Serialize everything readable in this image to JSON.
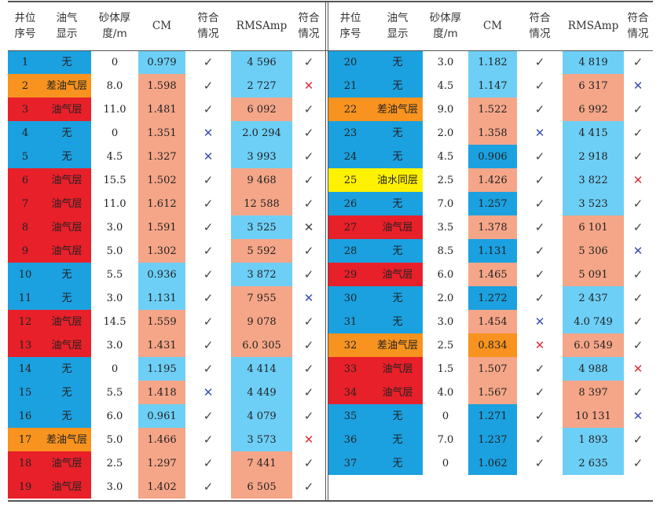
{
  "colors": {
    "none": "#1ba1e0",
    "oil_gas": "#e8202a",
    "poor_oil_gas": "#f7931e",
    "oil_water": "#fff200",
    "cm_low": "#6dcff6",
    "cm_high": "#f5a688",
    "cm_orange": "#f7931e",
    "cm_blue": "#1ba1e0",
    "rms_low": "#6dcff6",
    "rms_high": "#f5a688"
  },
  "headers": {
    "well_no": [
      "井位",
      "序号"
    ],
    "display": [
      "油气",
      "显示"
    ],
    "thickness": [
      "砂体厚",
      "度/m"
    ],
    "cm": [
      "CM"
    ],
    "cm_match": [
      "符合",
      "情况"
    ],
    "rms": [
      "RMSAmp"
    ],
    "rms_match": [
      "符合",
      "情况"
    ]
  },
  "symbols": {
    "yes": "✓",
    "no": "✕"
  },
  "left_rows": [
    {
      "no": "1",
      "disp": "无",
      "dc": "none",
      "thk": "0",
      "cm": "0.979",
      "cmc": "cm_low",
      "cmm": "yes",
      "rms": "4 596",
      "rmsc": "rms_low",
      "rmsm": "yes"
    },
    {
      "no": "2",
      "disp": "差油气层",
      "dc": "poor_oil_gas",
      "thk": "8.0",
      "cm": "1.598",
      "cmc": "cm_high",
      "cmm": "yes",
      "rms": "2 727",
      "rmsc": "rms_low",
      "rmsm": "no-red"
    },
    {
      "no": "3",
      "disp": "油气层",
      "dc": "oil_gas",
      "thk": "11.0",
      "cm": "1.481",
      "cmc": "cm_high",
      "cmm": "yes",
      "rms": "6 092",
      "rmsc": "rms_high",
      "rmsm": "yes"
    },
    {
      "no": "4",
      "disp": "无",
      "dc": "none",
      "thk": "0",
      "cm": "1.351",
      "cmc": "cm_high",
      "cmm": "no-blue",
      "rms": "2.0 294",
      "rmsc": "rms_low",
      "rmsm": "yes"
    },
    {
      "no": "5",
      "disp": "无",
      "dc": "none",
      "thk": "4.5",
      "cm": "1.327",
      "cmc": "cm_high",
      "cmm": "no-blue",
      "rms": "3 993",
      "rmsc": "rms_low",
      "rmsm": "yes"
    },
    {
      "no": "6",
      "disp": "油气层",
      "dc": "oil_gas",
      "thk": "15.5",
      "cm": "1.502",
      "cmc": "cm_high",
      "cmm": "yes",
      "rms": "9 468",
      "rmsc": "rms_high",
      "rmsm": "yes"
    },
    {
      "no": "7",
      "disp": "油气层",
      "dc": "oil_gas",
      "thk": "11.0",
      "cm": "1.612",
      "cmc": "cm_high",
      "cmm": "yes",
      "rms": "12 588",
      "rmsc": "rms_high",
      "rmsm": "yes"
    },
    {
      "no": "8",
      "disp": "油气层",
      "dc": "oil_gas",
      "thk": "3.0",
      "cm": "1.591",
      "cmc": "cm_high",
      "cmm": "yes",
      "rms": "3 525",
      "rmsc": "rms_low",
      "rmsm": "no-dark"
    },
    {
      "no": "9",
      "disp": "油气层",
      "dc": "oil_gas",
      "thk": "5.0",
      "cm": "1.302",
      "cmc": "cm_high",
      "cmm": "yes",
      "rms": "5 592",
      "rmsc": "rms_high",
      "rmsm": "yes"
    },
    {
      "no": "10",
      "disp": "无",
      "dc": "none",
      "thk": "5.5",
      "cm": "0.936",
      "cmc": "cm_low",
      "cmm": "yes",
      "rms": "3 872",
      "rmsc": "rms_low",
      "rmsm": "yes"
    },
    {
      "no": "11",
      "disp": "无",
      "dc": "none",
      "thk": "3.0",
      "cm": "1.131",
      "cmc": "cm_low",
      "cmm": "yes",
      "rms": "7 955",
      "rmsc": "rms_high",
      "rmsm": "no-blue"
    },
    {
      "no": "12",
      "disp": "油气层",
      "dc": "oil_gas",
      "thk": "14.5",
      "cm": "1.559",
      "cmc": "cm_high",
      "cmm": "yes",
      "rms": "9 078",
      "rmsc": "rms_high",
      "rmsm": "yes"
    },
    {
      "no": "13",
      "disp": "油气层",
      "dc": "oil_gas",
      "thk": "3.0",
      "cm": "1.431",
      "cmc": "cm_high",
      "cmm": "yes",
      "rms": "6.0 305",
      "rmsc": "rms_high",
      "rmsm": "yes"
    },
    {
      "no": "14",
      "disp": "无",
      "dc": "none",
      "thk": "0",
      "cm": "1.195",
      "cmc": "cm_low",
      "cmm": "yes",
      "rms": "4 414",
      "rmsc": "rms_low",
      "rmsm": "yes"
    },
    {
      "no": "15",
      "disp": "无",
      "dc": "none",
      "thk": "5.5",
      "cm": "1.418",
      "cmc": "cm_high",
      "cmm": "no-blue",
      "rms": "4 449",
      "rmsc": "rms_low",
      "rmsm": "yes"
    },
    {
      "no": "16",
      "disp": "无",
      "dc": "none",
      "thk": "6.0",
      "cm": "0.961",
      "cmc": "cm_low",
      "cmm": "yes",
      "rms": "4 079",
      "rmsc": "rms_low",
      "rmsm": "yes"
    },
    {
      "no": "17",
      "disp": "差油气层",
      "dc": "poor_oil_gas",
      "thk": "5.0",
      "cm": "1.466",
      "cmc": "cm_high",
      "cmm": "yes",
      "rms": "3 573",
      "rmsc": "rms_low",
      "rmsm": "no-red"
    },
    {
      "no": "18",
      "disp": "油气层",
      "dc": "oil_gas",
      "thk": "2.5",
      "cm": "1.297",
      "cmc": "cm_high",
      "cmm": "yes",
      "rms": "7 441",
      "rmsc": "rms_high",
      "rmsm": "yes"
    },
    {
      "no": "19",
      "disp": "油气层",
      "dc": "oil_gas",
      "thk": "3.0",
      "cm": "1.402",
      "cmc": "cm_high",
      "cmm": "yes",
      "rms": "6 505",
      "rmsc": "rms_high",
      "rmsm": "yes"
    }
  ],
  "right_rows": [
    {
      "no": "20",
      "disp": "无",
      "dc": "none",
      "thk": "3.0",
      "cm": "1.182",
      "cmc": "cm_low",
      "cmm": "yes",
      "rms": "4 819",
      "rmsc": "rms_low",
      "rmsm": "yes"
    },
    {
      "no": "21",
      "disp": "无",
      "dc": "none",
      "thk": "4.5",
      "cm": "1.147",
      "cmc": "cm_low",
      "cmm": "yes",
      "rms": "6 317",
      "rmsc": "rms_high",
      "rmsm": "no-blue"
    },
    {
      "no": "22",
      "disp": "差油气层",
      "dc": "poor_oil_gas",
      "thk": "9.0",
      "cm": "1.522",
      "cmc": "cm_high",
      "cmm": "yes",
      "rms": "6 992",
      "rmsc": "rms_high",
      "rmsm": "yes"
    },
    {
      "no": "23",
      "disp": "无",
      "dc": "none",
      "thk": "2.0",
      "cm": "1.358",
      "cmc": "cm_high",
      "cmm": "no-blue",
      "rms": "4 415",
      "rmsc": "rms_low",
      "rmsm": "yes"
    },
    {
      "no": "24",
      "disp": "无",
      "dc": "none",
      "thk": "4.5",
      "cm": "0.906",
      "cmc": "cm_blue",
      "cmm": "yes",
      "rms": "2 918",
      "rmsc": "rms_low",
      "rmsm": "yes"
    },
    {
      "no": "25",
      "disp": "油水同层",
      "dc": "oil_water",
      "thk": "2.5",
      "cm": "1.426",
      "cmc": "cm_high",
      "cmm": "yes",
      "rms": "3 822",
      "rmsc": "rms_low",
      "rmsm": "no-red"
    },
    {
      "no": "26",
      "disp": "无",
      "dc": "none",
      "thk": "7.0",
      "cm": "1.257",
      "cmc": "cm_blue",
      "cmm": "yes",
      "rms": "3 523",
      "rmsc": "rms_low",
      "rmsm": "yes"
    },
    {
      "no": "27",
      "disp": "油气层",
      "dc": "oil_gas",
      "thk": "3.5",
      "cm": "1.378",
      "cmc": "cm_high",
      "cmm": "yes",
      "rms": "6 101",
      "rmsc": "rms_high",
      "rmsm": "yes"
    },
    {
      "no": "28",
      "disp": "无",
      "dc": "none",
      "thk": "8.5",
      "cm": "1.131",
      "cmc": "cm_blue",
      "cmm": "yes",
      "rms": "5 306",
      "rmsc": "rms_high",
      "rmsm": "no-blue"
    },
    {
      "no": "29",
      "disp": "油气层",
      "dc": "oil_gas",
      "thk": "6.0",
      "cm": "1.465",
      "cmc": "cm_high",
      "cmm": "yes",
      "rms": "5 091",
      "rmsc": "rms_high",
      "rmsm": "yes"
    },
    {
      "no": "30",
      "disp": "无",
      "dc": "none",
      "thk": "2.0",
      "cm": "1.272",
      "cmc": "cm_blue",
      "cmm": "yes",
      "rms": "2 437",
      "rmsc": "rms_low",
      "rmsm": "yes"
    },
    {
      "no": "31",
      "disp": "无",
      "dc": "none",
      "thk": "3.0",
      "cm": "1.454",
      "cmc": "cm_high",
      "cmm": "no-blue",
      "rms": "4.0 749",
      "rmsc": "rms_low",
      "rmsm": "yes"
    },
    {
      "no": "32",
      "disp": "差油气层",
      "dc": "poor_oil_gas",
      "thk": "2.5",
      "cm": "0.834",
      "cmc": "cm_orange",
      "cmm": "no-red",
      "rms": "6.0 549",
      "rmsc": "rms_high",
      "rmsm": "yes"
    },
    {
      "no": "33",
      "disp": "油气层",
      "dc": "oil_gas",
      "thk": "1.5",
      "cm": "1.507",
      "cmc": "cm_high",
      "cmm": "yes",
      "rms": "4 988",
      "rmsc": "rms_low",
      "rmsm": "no-red"
    },
    {
      "no": "34",
      "disp": "油气层",
      "dc": "oil_gas",
      "thk": "4.0",
      "cm": "1.567",
      "cmc": "cm_high",
      "cmm": "yes",
      "rms": "8 397",
      "rmsc": "rms_high",
      "rmsm": "yes"
    },
    {
      "no": "35",
      "disp": "无",
      "dc": "none",
      "thk": "0",
      "cm": "1.271",
      "cmc": "cm_blue",
      "cmm": "yes",
      "rms": "10 131",
      "rmsc": "rms_high",
      "rmsm": "no-blue"
    },
    {
      "no": "36",
      "disp": "无",
      "dc": "none",
      "thk": "7.0",
      "cm": "1.237",
      "cmc": "cm_blue",
      "cmm": "yes",
      "rms": "1 893",
      "rmsc": "rms_low",
      "rmsm": "yes"
    },
    {
      "no": "37",
      "disp": "无",
      "dc": "none",
      "thk": "0",
      "cm": "1.062",
      "cmc": "cm_blue",
      "cmm": "yes",
      "rms": "2 635",
      "rmsc": "rms_low",
      "rmsm": "yes"
    }
  ]
}
